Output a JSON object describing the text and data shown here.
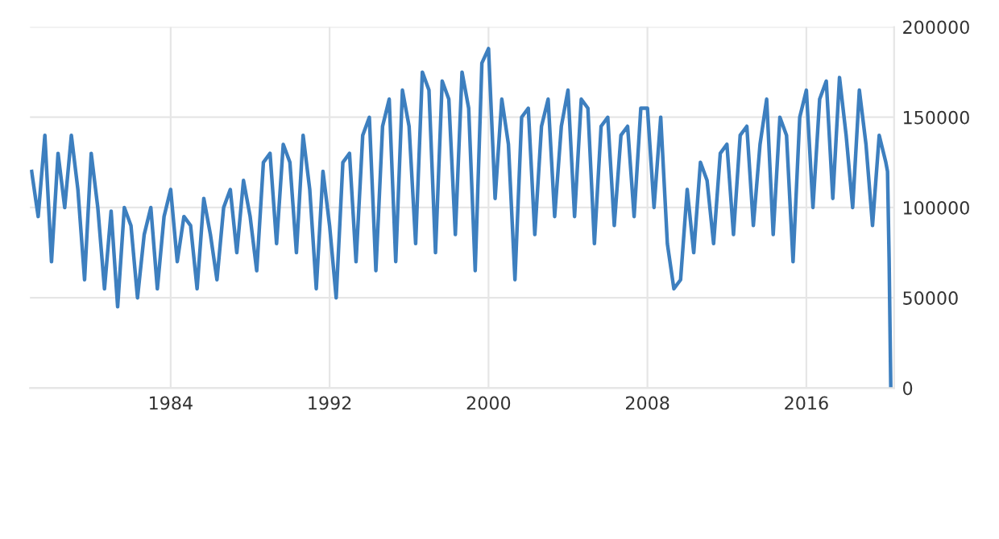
{
  "chart_data": {
    "type": "line",
    "x": [
      "1977-01",
      "1977-05",
      "1977-09",
      "1978-01",
      "1978-05",
      "1978-09",
      "1979-01",
      "1979-05",
      "1979-09",
      "1980-01",
      "1980-05",
      "1980-09",
      "1981-01",
      "1981-05",
      "1981-09",
      "1982-01",
      "1982-05",
      "1982-09",
      "1983-01",
      "1983-05",
      "1983-09",
      "1984-01",
      "1984-05",
      "1984-09",
      "1985-01",
      "1985-05",
      "1985-09",
      "1986-01",
      "1986-05",
      "1986-09",
      "1987-01",
      "1987-05",
      "1987-09",
      "1988-01",
      "1988-05",
      "1988-09",
      "1989-01",
      "1989-05",
      "1989-09",
      "1990-01",
      "1990-05",
      "1990-09",
      "1991-01",
      "1991-05",
      "1991-09",
      "1992-01",
      "1992-05",
      "1992-09",
      "1993-01",
      "1993-05",
      "1993-09",
      "1994-01",
      "1994-05",
      "1994-09",
      "1995-01",
      "1995-05",
      "1995-09",
      "1996-01",
      "1996-05",
      "1996-09",
      "1997-01",
      "1997-05",
      "1997-09",
      "1998-01",
      "1998-05",
      "1998-09",
      "1999-01",
      "1999-05",
      "1999-09",
      "2000-01",
      "2000-05",
      "2000-09",
      "2001-01",
      "2001-05",
      "2001-09",
      "2002-01",
      "2002-05",
      "2002-09",
      "2003-01",
      "2003-05",
      "2003-09",
      "2004-01",
      "2004-05",
      "2004-09",
      "2005-01",
      "2005-05",
      "2005-09",
      "2006-01",
      "2006-05",
      "2006-09",
      "2007-01",
      "2007-05",
      "2007-09",
      "2008-01",
      "2008-05",
      "2008-09",
      "2009-01",
      "2009-05",
      "2009-09",
      "2010-01",
      "2010-05",
      "2010-09",
      "2011-01",
      "2011-05",
      "2011-09",
      "2012-01",
      "2012-05",
      "2012-09",
      "2013-01",
      "2013-05",
      "2013-09",
      "2014-01",
      "2014-05",
      "2014-09",
      "2015-01",
      "2015-05",
      "2015-09",
      "2016-01",
      "2016-05",
      "2016-09",
      "2017-01",
      "2017-05",
      "2017-09",
      "2018-01",
      "2018-05",
      "2018-09",
      "2019-01",
      "2019-05",
      "2019-09",
      "2020-01",
      "2020-02",
      "2020-03",
      "2020-04"
    ],
    "series": [
      {
        "color": "#3d7fbf",
        "values": [
          120000,
          95000,
          140000,
          70000,
          130000,
          100000,
          140000,
          110000,
          60000,
          130000,
          100000,
          55000,
          98000,
          45000,
          100000,
          90000,
          50000,
          85000,
          100000,
          55000,
          95000,
          110000,
          70000,
          95000,
          90000,
          55000,
          105000,
          85000,
          60000,
          100000,
          110000,
          75000,
          115000,
          95000,
          65000,
          125000,
          130000,
          80000,
          135000,
          125000,
          75000,
          140000,
          110000,
          55000,
          120000,
          90000,
          50000,
          125000,
          130000,
          70000,
          140000,
          150000,
          65000,
          145000,
          160000,
          70000,
          165000,
          145000,
          80000,
          175000,
          165000,
          75000,
          170000,
          160000,
          85000,
          175000,
          155000,
          65000,
          180000,
          188000,
          105000,
          160000,
          135000,
          60000,
          150000,
          155000,
          85000,
          145000,
          160000,
          95000,
          145000,
          165000,
          95000,
          160000,
          155000,
          80000,
          145000,
          150000,
          90000,
          140000,
          145000,
          95000,
          155000,
          155000,
          100000,
          150000,
          80000,
          55000,
          60000,
          110000,
          75000,
          125000,
          115000,
          80000,
          130000,
          135000,
          85000,
          140000,
          145000,
          90000,
          135000,
          160000,
          85000,
          150000,
          140000,
          70000,
          150000,
          165000,
          100000,
          160000,
          170000,
          105000,
          172000,
          140000,
          100000,
          165000,
          135000,
          90000,
          140000,
          125000,
          120000,
          72000,
          0
        ]
      }
    ],
    "xlim": [
      "1976-12",
      "2020-06"
    ],
    "xticks": [
      {
        "value": "1984-01-01",
        "label": "1984"
      },
      {
        "value": "1992-01-01",
        "label": "1992"
      },
      {
        "value": "2000-01-01",
        "label": "2000"
      },
      {
        "value": "2008-01-01",
        "label": "2008"
      },
      {
        "value": "2016-01-01",
        "label": "2016"
      }
    ],
    "ylim": [
      0,
      200000
    ],
    "yticks": [
      0,
      50000,
      100000,
      150000,
      200000
    ],
    "grid": true
  }
}
